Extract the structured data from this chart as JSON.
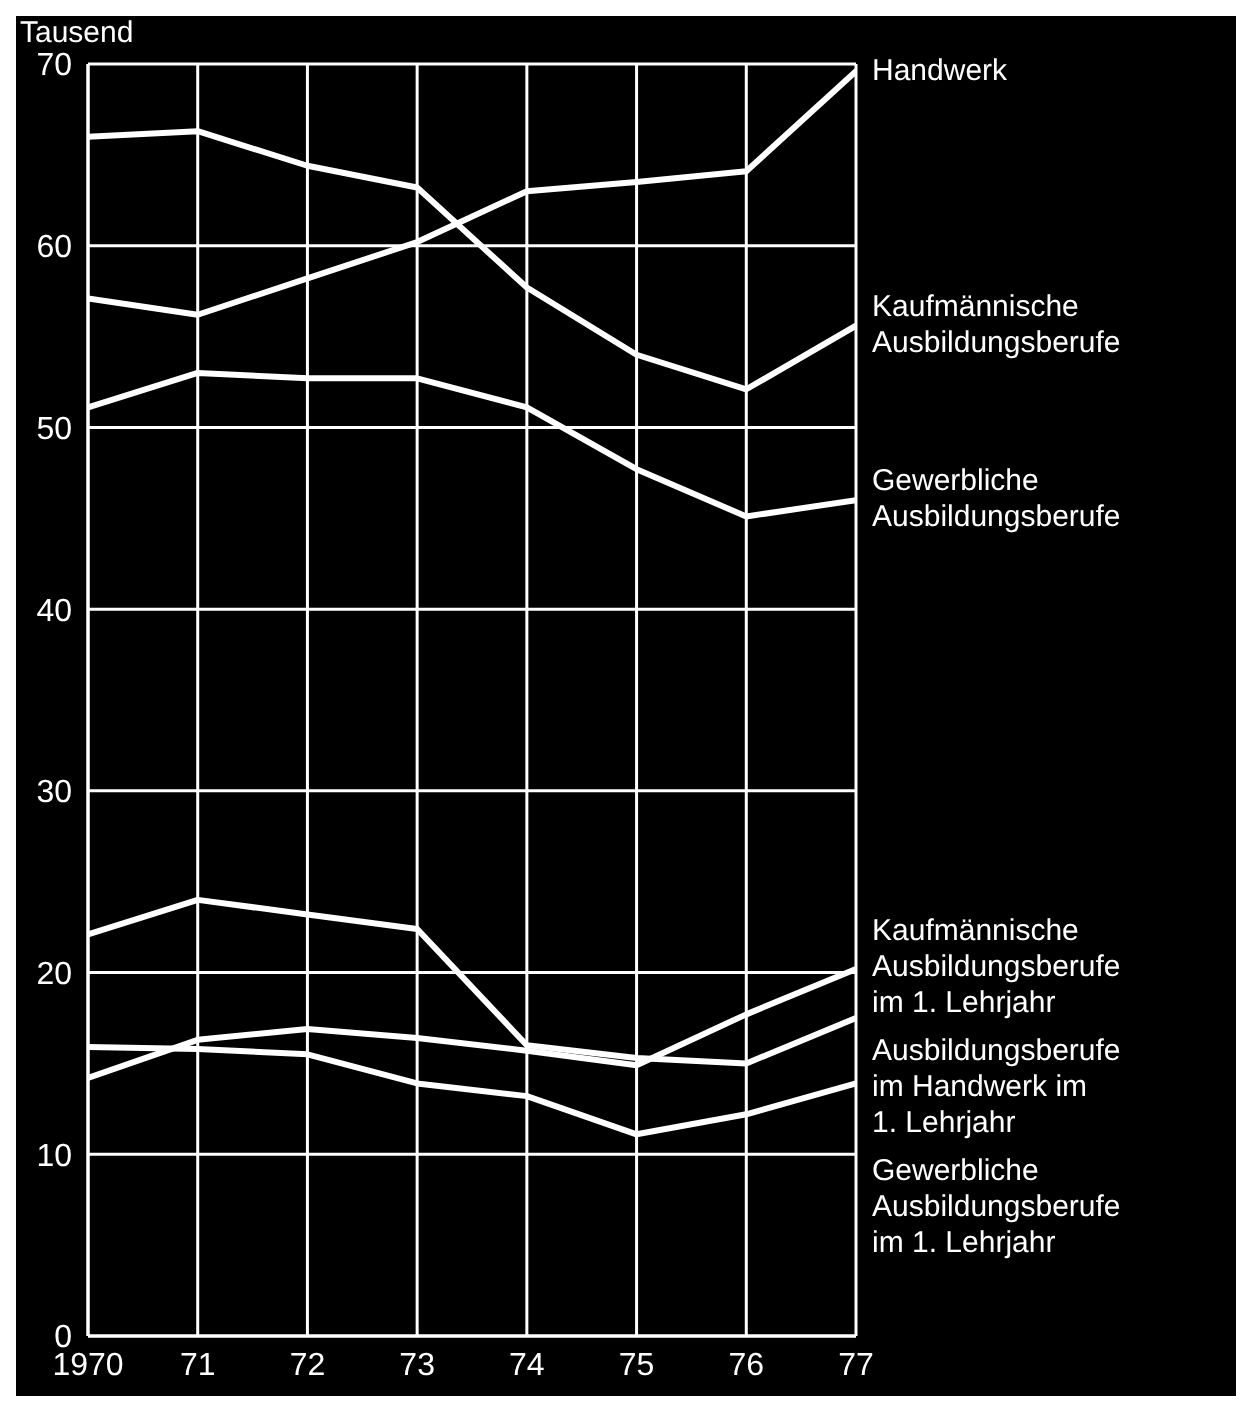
{
  "chart_data": {
    "type": "line",
    "ylabel": "Tausend",
    "x": [
      1970,
      1971,
      1972,
      1973,
      1974,
      1975,
      1976,
      1977
    ],
    "xlim": [
      1970,
      1977
    ],
    "xticks": [
      1970,
      {
        "value": 1971,
        "label": "71"
      },
      {
        "value": 1972,
        "label": "72"
      },
      {
        "value": 1973,
        "label": "73"
      },
      {
        "value": 1974,
        "label": "74"
      },
      {
        "value": 1975,
        "label": "75"
      },
      {
        "value": 1976,
        "label": "76"
      },
      {
        "value": 1977,
        "label": "77"
      }
    ],
    "ylim": [
      0,
      70
    ],
    "yticks": [
      0,
      10,
      20,
      30,
      40,
      50,
      60,
      70
    ],
    "grid": true,
    "legend": "right",
    "line_style": "solid",
    "marker": "none",
    "series": [
      {
        "name": "Handwerk",
        "color": "#ffffff",
        "values": [
          57.1,
          56.2,
          58.2,
          60.2,
          63,
          63.5,
          64.1,
          69.6
        ]
      },
      {
        "name": "Kaufmännische Ausbildungsberufe",
        "color": "#ffffff",
        "values": [
          66,
          66.3,
          64.4,
          63.2,
          57.7,
          54,
          52.1,
          55.6
        ]
      },
      {
        "name": "Gewerbliche Ausbildungsberufe",
        "color": "#ffffff",
        "values": [
          51.1,
          53,
          52.7,
          52.7,
          51.1,
          47.7,
          45.1,
          46
        ]
      },
      {
        "name": "Ausbildungsberufe im Handwerk im 1. Lehrjahr",
        "color": "#ffffff",
        "values": [
          22.1,
          24,
          23.2,
          22.4,
          16,
          15.3,
          15,
          17.5
        ]
      },
      {
        "name": "Kaufmännische Ausbildungsberufe im 1. Lehrjahr",
        "color": "#ffffff",
        "values": [
          14.2,
          16.3,
          16.9,
          16.4,
          15.7,
          14.9,
          17.7,
          20.2
        ]
      },
      {
        "name": "Gewerbliche Ausbildungsberufe im 1. Lehrjahr",
        "color": "#ffffff",
        "values": [
          15.9,
          15.8,
          15.5,
          13.9,
          13.2,
          11.1,
          12.2,
          13.9
        ]
      }
    ]
  }
}
